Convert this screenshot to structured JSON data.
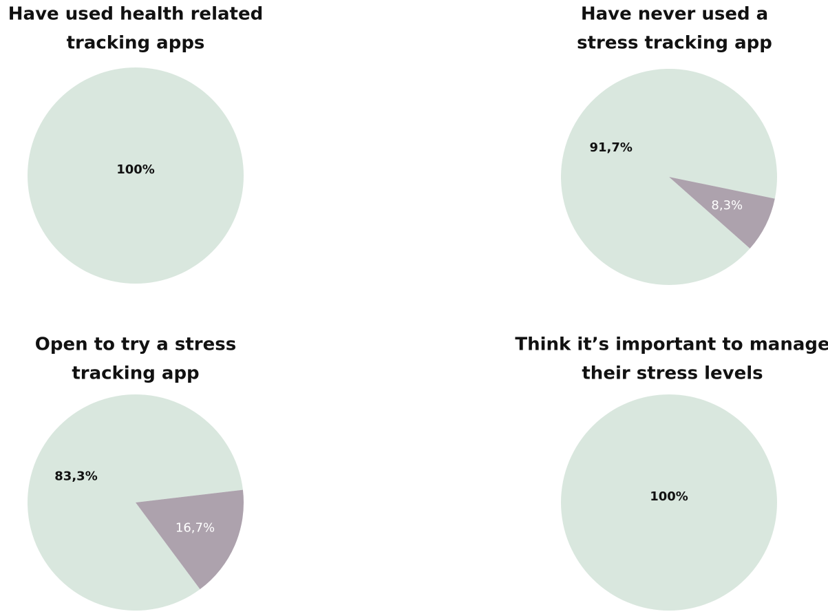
{
  "chart_data": [
    {
      "type": "pie",
      "title": [
        "Have used health related",
        "tracking apps"
      ],
      "values": [
        100
      ],
      "value_labels": [
        "100%"
      ],
      "colors": [
        "#d9e7de"
      ]
    },
    {
      "type": "pie",
      "title": [
        "Have never used a",
        "stress tracking app"
      ],
      "values": [
        91.7,
        8.3
      ],
      "value_labels": [
        "91,7%",
        "8,3%"
      ],
      "colors": [
        "#d9e7de",
        "#ada2ad"
      ]
    },
    {
      "type": "pie",
      "title": [
        "Open to try a stress",
        "tracking app"
      ],
      "values": [
        83.3,
        16.7
      ],
      "value_labels": [
        "83,3%",
        "16,7%"
      ],
      "colors": [
        "#d9e7de",
        "#ada2ad"
      ]
    },
    {
      "type": "pie",
      "title": [
        "Think it’s important to manage",
        "their stress levels"
      ],
      "values": [
        100
      ],
      "value_labels": [
        "100%"
      ],
      "colors": [
        "#d9e7de"
      ]
    }
  ]
}
